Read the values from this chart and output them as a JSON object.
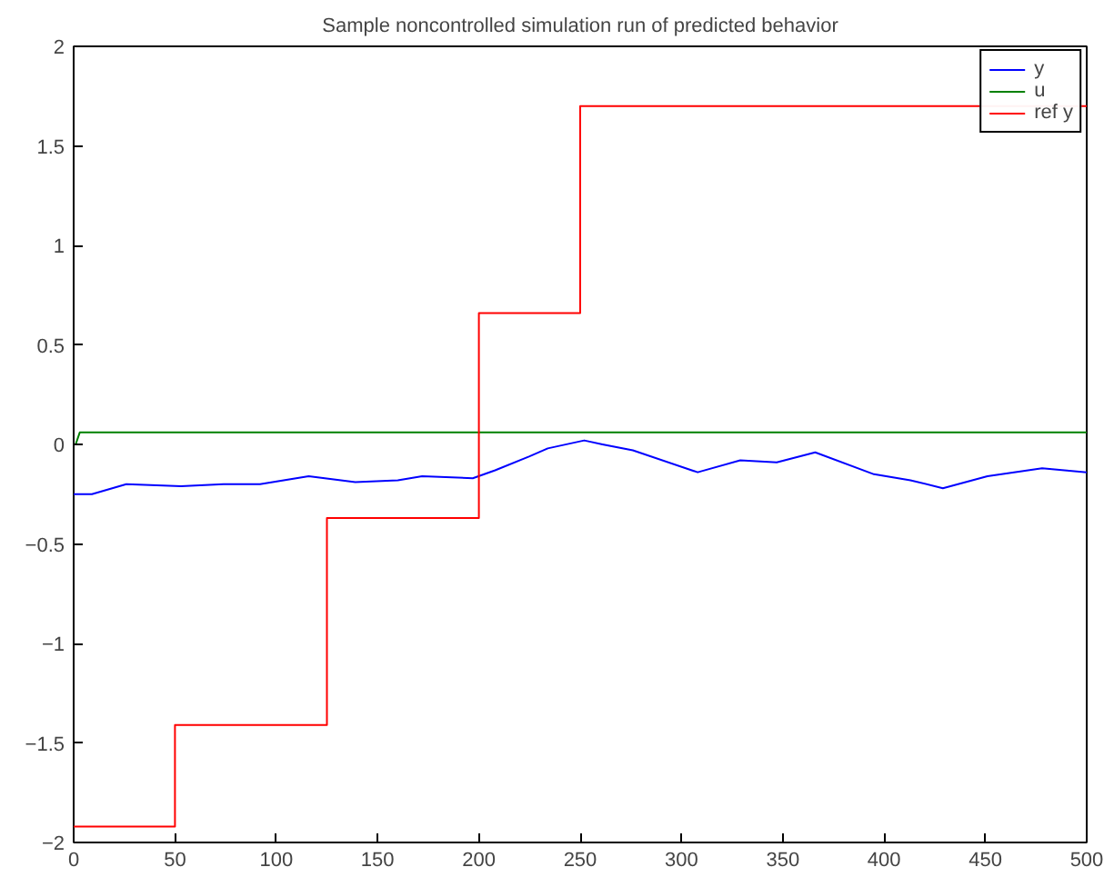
{
  "chart_data": {
    "type": "line",
    "title": "Sample noncontrolled simulation run of predicted behavior",
    "xlim": [
      0,
      500
    ],
    "ylim": [
      -2,
      2
    ],
    "xticks": [
      0,
      50,
      100,
      150,
      200,
      250,
      300,
      350,
      400,
      450,
      500
    ],
    "yticks": [
      -2,
      -1.5,
      -1,
      -0.5,
      0,
      0.5,
      1,
      1.5,
      2
    ],
    "grid": false,
    "legend": "top right",
    "series": [
      {
        "name": "y",
        "color": "#0000ff",
        "x": [
          0,
          9,
          26,
          53,
          74,
          92,
          116,
          139,
          160,
          172,
          197,
          208,
          225,
          234,
          252,
          261,
          276,
          308,
          329,
          347,
          366,
          395,
          413,
          429,
          451,
          478,
          500
        ],
        "values": [
          -0.25,
          -0.25,
          -0.2,
          -0.21,
          -0.2,
          -0.2,
          -0.16,
          -0.19,
          -0.18,
          -0.16,
          -0.17,
          -0.13,
          -0.06,
          -0.02,
          0.02,
          0.0,
          -0.03,
          -0.14,
          -0.08,
          -0.09,
          -0.04,
          -0.15,
          -0.18,
          -0.22,
          -0.16,
          -0.12,
          -0.14
        ]
      },
      {
        "name": "u",
        "color": "#008000",
        "type": "line",
        "x": [
          0,
          1,
          3,
          500
        ],
        "values": [
          0,
          0,
          0.06,
          0.06
        ]
      },
      {
        "name": "ref y",
        "color": "#ff0000",
        "type": "step",
        "x": [
          0,
          50,
          125,
          200,
          250,
          500
        ],
        "values": [
          -1.92,
          -1.41,
          -0.37,
          0.66,
          1.7,
          1.7
        ]
      }
    ]
  }
}
